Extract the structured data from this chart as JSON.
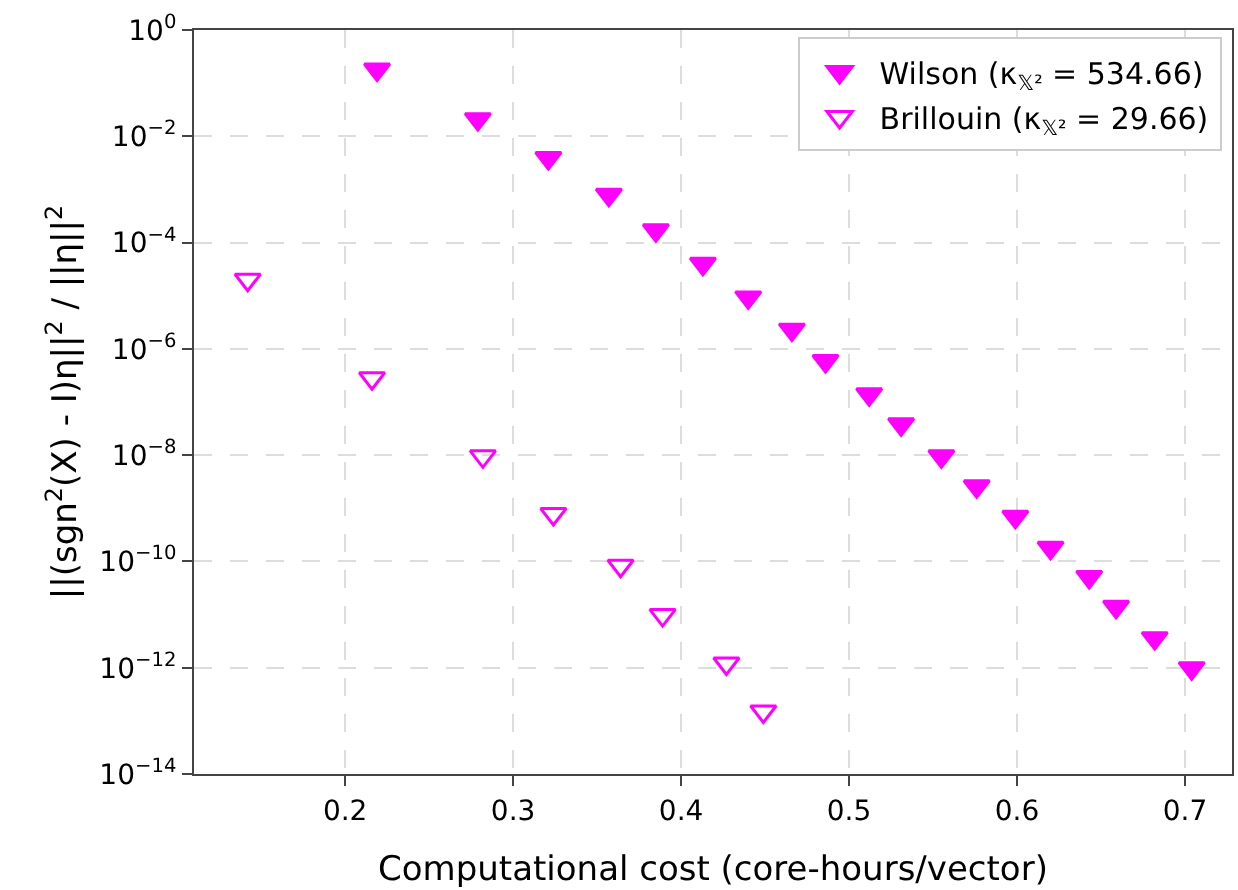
{
  "chart_data": {
    "type": "scatter",
    "xlabel": "Computational cost (core-hours/vector)",
    "ylabel": "||(sgn$^{2}$(X) - I)η||$^{2}$ / ||η||$^{2}$",
    "log": "y",
    "grid": true,
    "legend": "top right",
    "marker": "triangle",
    "xlim": [
      0.11,
      0.728
    ],
    "xticks": [
      0.2,
      0.3,
      0.4,
      0.5,
      0.6,
      0.7
    ],
    "ylim": [
      1e-14,
      1
    ],
    "yticks": [
      {
        "value": 1e-14,
        "label": "10$^{−14}$"
      },
      {
        "value": 1e-12,
        "label": "10$^{−12}$"
      },
      {
        "value": 1e-10,
        "label": "10$^{−10}$"
      },
      {
        "value": 1e-08,
        "label": "10$^{−8}$"
      },
      {
        "value": 1e-06,
        "label": "10$^{−6}$"
      },
      {
        "value": 0.0001,
        "label": "10$^{−4}$"
      },
      {
        "value": 0.01,
        "label": "10$^{−2}$"
      },
      {
        "value": 1,
        "label": "10$^{0}$"
      }
    ],
    "series": [
      {
        "name": "Wilson (κ$_{𝕏²}$ = 534.66)",
        "color": "#ff00ff",
        "x": [
          0.219,
          0.279,
          0.321,
          0.357,
          0.385,
          0.413,
          0.44,
          0.466,
          0.486,
          0.512,
          0.531,
          0.555,
          0.576,
          0.599,
          0.62,
          0.643,
          0.659,
          0.682,
          0.704
        ],
        "values": [
          0.18,
          0.021,
          0.0039,
          0.00079,
          0.00017,
          4e-05,
          9.3e-06,
          2.3e-06,
          5.9e-07,
          1.4e-07,
          3.8e-08,
          9.5e-09,
          2.6e-09,
          6.9e-10,
          1.8e-10,
          5.1e-11,
          1.4e-11,
          3.6e-12,
          9.8e-13
        ]
      },
      {
        "name": "Brillouin (κ$_{𝕏²}$ = 29.66)",
        "color": "#ff00ff",
        "x": [
          0.142,
          0.216,
          0.282,
          0.324,
          0.364,
          0.389,
          0.427,
          0.449
        ],
        "values": [
          2e-05,
          2.8e-07,
          9.5e-09,
          7.8e-10,
          8.3e-11,
          9.8e-12,
          1.2e-12,
          1.5e-13
        ]
      }
    ]
  }
}
